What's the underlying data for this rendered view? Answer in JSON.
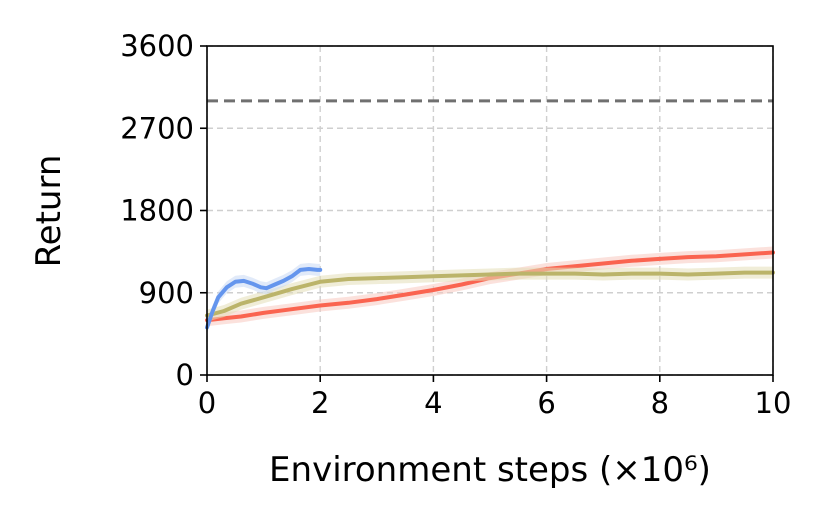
{
  "chart_data": {
    "type": "line",
    "xlabel": "Environment steps (×10⁶)",
    "ylabel": "Return",
    "xlim": [
      0,
      10
    ],
    "ylim": [
      0,
      3600
    ],
    "xticks": [
      0,
      2,
      4,
      6,
      8,
      10
    ],
    "yticks": [
      0,
      900,
      1800,
      2700,
      3600
    ],
    "xtick_labels": [
      "0",
      "2",
      "4",
      "6",
      "8",
      "10"
    ],
    "ytick_labels": [
      "0",
      "900",
      "1800",
      "2700",
      "3600"
    ],
    "grid": true,
    "grid_style": "dashed",
    "legend": "none",
    "reference_line": {
      "y": 3000,
      "color": "#707070",
      "style": "dashed"
    },
    "series": [
      {
        "color": "#FA6450",
        "band_color": "#F8C8C0",
        "x": [
          0,
          0.3,
          0.6,
          1.0,
          1.5,
          2.0,
          2.5,
          3.0,
          3.5,
          4.0,
          4.5,
          5.0,
          5.5,
          6.0,
          6.5,
          7.0,
          7.5,
          8.0,
          8.5,
          9.0,
          9.5,
          10.0
        ],
        "y": [
          600,
          620,
          640,
          680,
          720,
          760,
          790,
          830,
          880,
          930,
          990,
          1060,
          1110,
          1160,
          1190,
          1220,
          1250,
          1270,
          1290,
          1300,
          1320,
          1340
        ]
      },
      {
        "color": "#BBB46A",
        "band_color": "#E3DFB8",
        "x": [
          0,
          0.3,
          0.6,
          1.0,
          1.5,
          2.0,
          2.5,
          3.0,
          3.5,
          4.0,
          4.5,
          5.0,
          5.5,
          6.0,
          6.5,
          7.0,
          7.5,
          8.0,
          8.5,
          9.0,
          9.5,
          10.0
        ],
        "y": [
          650,
          700,
          780,
          850,
          940,
          1020,
          1050,
          1060,
          1070,
          1080,
          1090,
          1100,
          1110,
          1110,
          1110,
          1100,
          1110,
          1110,
          1100,
          1110,
          1120,
          1120
        ]
      },
      {
        "color": "#6495ED",
        "band_color": "#C8D8F4",
        "x": [
          0,
          0.1,
          0.2,
          0.35,
          0.5,
          0.65,
          0.8,
          0.95,
          1.05,
          1.2,
          1.35,
          1.5,
          1.65,
          1.8,
          1.95,
          2.0
        ],
        "y": [
          520,
          700,
          850,
          960,
          1020,
          1030,
          1000,
          960,
          950,
          990,
          1030,
          1080,
          1150,
          1160,
          1150,
          1150
        ]
      }
    ]
  }
}
